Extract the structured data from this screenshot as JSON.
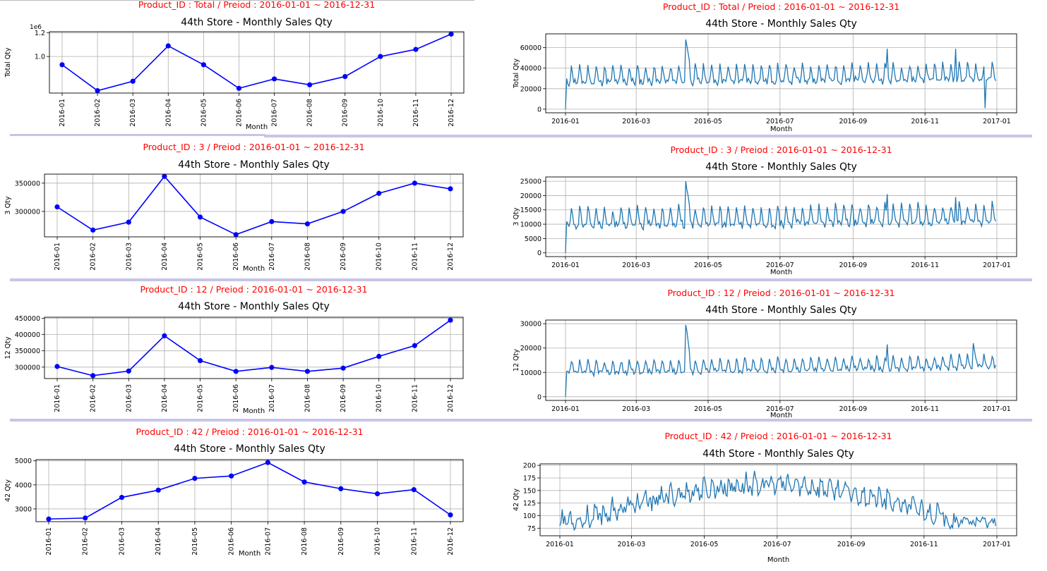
{
  "colors": {
    "heading": "#ff0000",
    "monthly_line": "#0000ff",
    "daily_line": "#1f77b4",
    "separator": "#c8c4e8"
  },
  "x_axis_label": "Month",
  "chart_title": "44th Store - Monthly Sales Qty",
  "rows": [
    {
      "heading": "Product_ID : Total / Preiod : 2016-01-01 ~ 2016-12-31",
      "monthly": {
        "type": "line",
        "title": "44th Store - Monthly Sales Qty",
        "xlabel": "Month",
        "ylabel": "Total Qty",
        "offset_text": "1e6",
        "categories": [
          "2016-01",
          "2016-02",
          "2016-03",
          "2016-04",
          "2016-05",
          "2016-06",
          "2016-07",
          "2016-08",
          "2016-09",
          "2016-10",
          "2016-11",
          "2016-12"
        ],
        "values": [
          0.93,
          0.71,
          0.79,
          1.09,
          0.93,
          0.73,
          0.81,
          0.76,
          0.83,
          1.0,
          1.06,
          1.19
        ],
        "yticks": [
          1.0,
          1.2
        ],
        "ytick_labels": [
          "1.0",
          "1.2"
        ],
        "ylim": [
          0.69,
          1.21
        ]
      },
      "daily": {
        "type": "line",
        "title": "44th Store - Monthly Sales Qty",
        "xlabel": "Month",
        "ylabel": "Total Qty",
        "xticks": [
          "2016-01",
          "2016-03",
          "2016-05",
          "2016-07",
          "2016-09",
          "2016-11",
          "2017-01"
        ],
        "yticks": [
          0,
          20000,
          40000,
          60000
        ],
        "ytick_labels": [
          "0",
          "20000",
          "40000",
          "60000"
        ],
        "ylim": [
          -3500,
          73500
        ],
        "shape": {
          "base": 24000,
          "amp": 17000,
          "trend": 3000,
          "seed": 11,
          "start": 0,
          "dip_index": 356,
          "dip_value": 1000,
          "spikes": [
            [
              102,
              68000
            ],
            [
              103,
              62000
            ],
            [
              104,
              55000
            ],
            [
              105,
              48000
            ],
            [
              273,
              59000
            ],
            [
              331,
              59000
            ],
            [
              356,
              44000
            ]
          ]
        }
      }
    },
    {
      "heading": "Product_ID : 3 / Preiod : 2016-01-01 ~ 2016-12-31",
      "monthly": {
        "type": "line",
        "title": "44th Store - Monthly Sales Qty",
        "xlabel": "Month",
        "ylabel": "3 Qty",
        "categories": [
          "2016-01",
          "2016-02",
          "2016-03",
          "2016-04",
          "2016-05",
          "2016-06",
          "2016-07",
          "2016-08",
          "2016-09",
          "2016-10",
          "2016-11",
          "2016-12"
        ],
        "values": [
          308000,
          267000,
          281000,
          362000,
          290000,
          259000,
          282000,
          278000,
          300000,
          332000,
          350000,
          340000
        ],
        "yticks": [
          300000,
          350000
        ],
        "ytick_labels": [
          "300000",
          "350000"
        ],
        "ylim": [
          255000,
          366000
        ]
      },
      "daily": {
        "type": "line",
        "title": "44th Store - Monthly Sales Qty",
        "xlabel": "Month",
        "ylabel": "3 Qty",
        "xticks": [
          "2016-01",
          "2016-03",
          "2016-05",
          "2016-07",
          "2016-09",
          "2016-11",
          "2017-01"
        ],
        "yticks": [
          0,
          5000,
          10000,
          15000,
          20000,
          25000
        ],
        "ytick_labels": [
          "0",
          "5000",
          "10000",
          "15000",
          "20000",
          "25000"
        ],
        "ylim": [
          -1300,
          26500
        ],
        "shape": {
          "base": 8500,
          "amp": 7000,
          "trend": 1500,
          "seed": 23,
          "start": 0,
          "spikes": [
            [
              102,
              25000
            ],
            [
              103,
              22000
            ],
            [
              104,
              20000
            ],
            [
              105,
              17000
            ],
            [
              273,
              20500
            ],
            [
              331,
              19500
            ]
          ]
        }
      }
    },
    {
      "heading": "Product_ID : 12 / Preiod : 2016-01-01 ~ 2016-12-31",
      "monthly": {
        "type": "line",
        "title": "44th Store - Monthly Sales Qty",
        "xlabel": "Month",
        "ylabel": "12 Qty",
        "categories": [
          "2016-01",
          "2016-02",
          "2016-03",
          "2016-04",
          "2016-05",
          "2016-06",
          "2016-07",
          "2016-08",
          "2016-09",
          "2016-10",
          "2016-11",
          "2016-12"
        ],
        "values": [
          302000,
          274000,
          288000,
          396000,
          320000,
          287000,
          299000,
          287000,
          297000,
          333000,
          366000,
          444000
        ],
        "yticks": [
          300000,
          350000,
          400000,
          450000
        ],
        "ytick_labels": [
          "300000",
          "350000",
          "400000",
          "450000"
        ],
        "ylim": [
          265000,
          453000
        ]
      },
      "daily": {
        "type": "line",
        "title": "44th Store - Monthly Sales Qty",
        "xlabel": "Month",
        "ylabel": "12 Qty",
        "xticks": [
          "2016-01",
          "2016-03",
          "2016-05",
          "2016-07",
          "2016-09",
          "2016-11",
          "2017-01"
        ],
        "yticks": [
          0,
          10000,
          20000,
          30000
        ],
        "ytick_labels": [
          "0",
          "10000",
          "20000",
          "30000"
        ],
        "ylim": [
          -1500,
          31500
        ],
        "shape": {
          "base": 9000,
          "amp": 5500,
          "trend": 2500,
          "seed": 37,
          "start": 0,
          "spikes": [
            [
              102,
              29500
            ],
            [
              103,
              27000
            ],
            [
              104,
              23000
            ],
            [
              105,
              19000
            ],
            [
              273,
              21500
            ],
            [
              346,
              22000
            ],
            [
              347,
              19000
            ]
          ]
        }
      }
    },
    {
      "heading": "Product_ID : 42 / Preiod : 2016-01-01 ~ 2016-12-31",
      "monthly": {
        "type": "line",
        "title": "44th Store - Monthly Sales Qty",
        "xlabel": "Month",
        "ylabel": "42 Qty",
        "categories": [
          "2016-01",
          "2016-02",
          "2016-03",
          "2016-04",
          "2016-05",
          "2016-06",
          "2016-07",
          "2016-08",
          "2016-09",
          "2016-10",
          "2016-11",
          "2016-12"
        ],
        "values": [
          2580,
          2620,
          3480,
          3780,
          4270,
          4370,
          4930,
          4120,
          3840,
          3630,
          3800,
          2750
        ],
        "yticks": [
          3000,
          4000,
          5000
        ],
        "ytick_labels": [
          "3000",
          "4000",
          "5000"
        ],
        "ylim": [
          2470,
          5050
        ]
      },
      "daily": {
        "type": "line",
        "title": "44th Store - Monthly Sales Qty",
        "xlabel": "Month",
        "ylabel": "42 Qty",
        "xticks": [
          "2016-01",
          "2016-03",
          "2016-05",
          "2016-07",
          "2016-09",
          "2016-11",
          "2017-01"
        ],
        "yticks": [
          75,
          100,
          125,
          150,
          175,
          200
        ],
        "ytick_labels": [
          "75",
          "100",
          "125",
          "150",
          "175",
          "200"
        ],
        "ylim": [
          60,
          203
        ],
        "shape": {
          "seasonal": true,
          "seed": 53
        }
      }
    }
  ]
}
